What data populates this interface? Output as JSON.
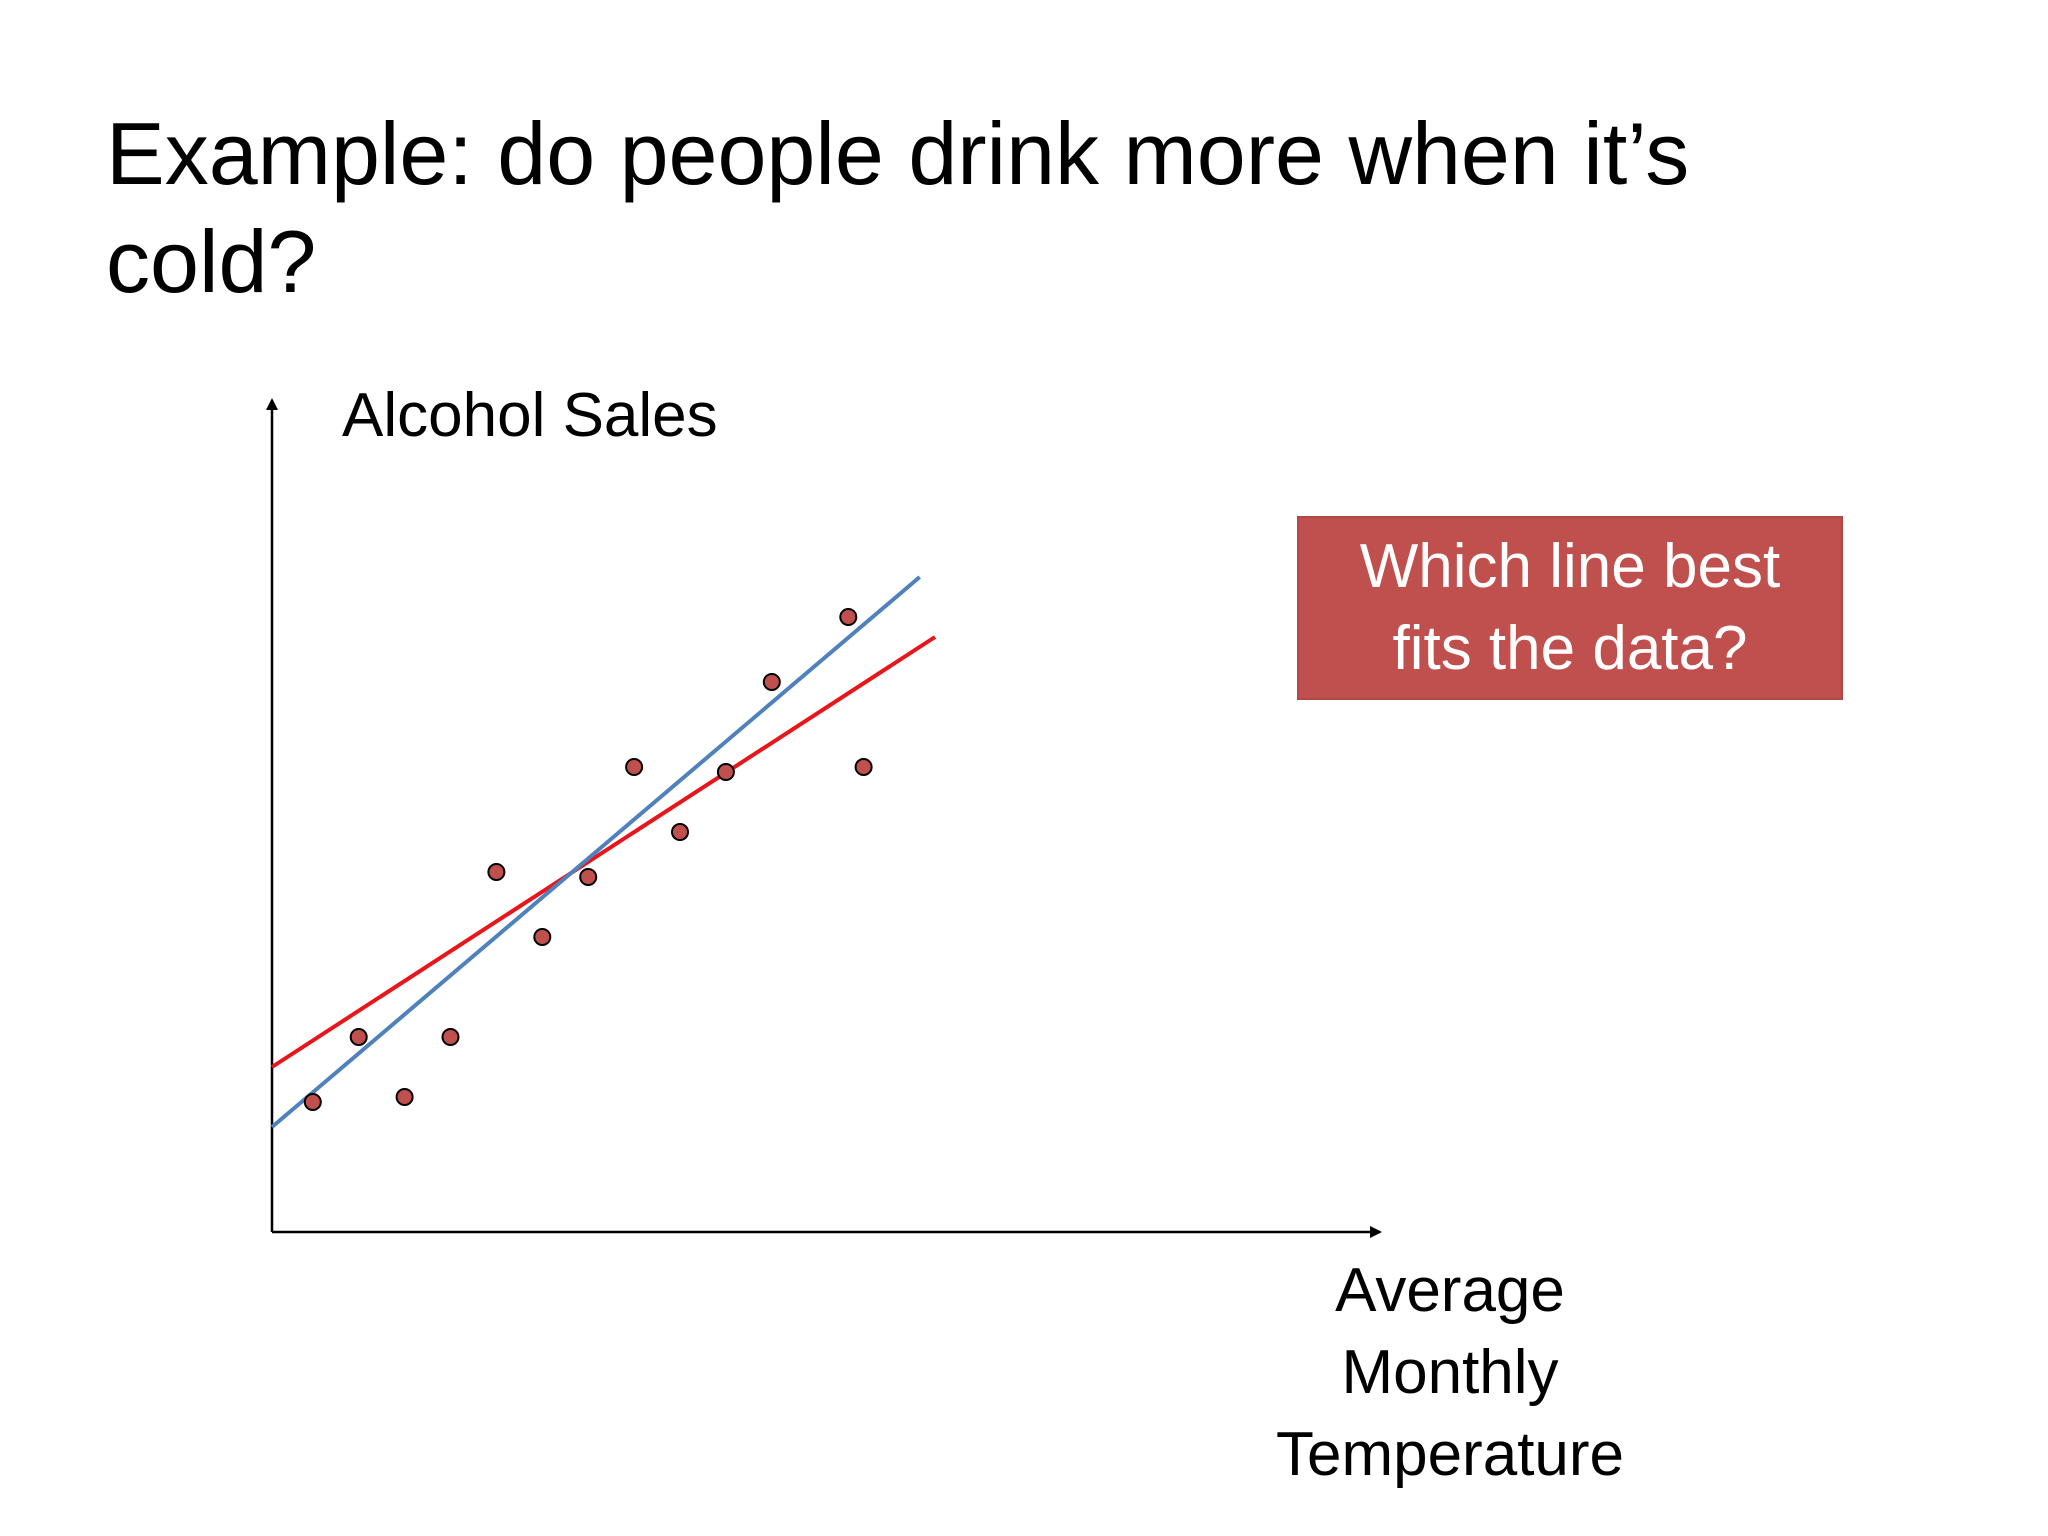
{
  "slide": {
    "title": "Example: do people drink more when it’s cold?"
  },
  "callout": {
    "text": "Which line best\nfits the data?"
  },
  "colors": {
    "axis": "#000000",
    "point_fill": "#c0504d",
    "point_stroke": "#000000",
    "red_line": "#e8151b",
    "blue_line": "#4f81bd",
    "callout_bg": "#c0504d",
    "callout_text": "#ffffff"
  },
  "chart_data": {
    "type": "scatter",
    "title": "",
    "xlabel": "Average\nMonthly\nTemperature",
    "ylabel": "Alcohol Sales",
    "xlim": [
      0,
      10
    ],
    "ylim": [
      0,
      10
    ],
    "grid": false,
    "legend": "none",
    "series": [
      {
        "type": "scatter",
        "x": [
          0.4,
          0.85,
          1.3,
          1.75,
          2.2,
          2.65,
          3.1,
          3.55,
          4.0,
          4.45,
          4.9,
          5.65,
          5.8
        ],
        "y": [
          1.3,
          1.95,
          1.35,
          1.95,
          3.6,
          2.95,
          3.55,
          4.65,
          4.0,
          4.6,
          5.5,
          6.15,
          4.65
        ]
      },
      {
        "type": "line",
        "x": [
          0.0,
          6.5
        ],
        "y": [
          1.65,
          5.95
        ]
      },
      {
        "type": "line",
        "x": [
          0.0,
          6.35
        ],
        "y": [
          1.05,
          6.55
        ]
      }
    ]
  }
}
